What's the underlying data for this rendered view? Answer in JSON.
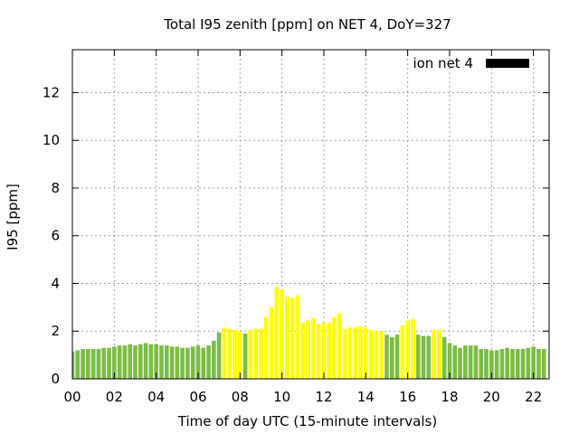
{
  "chart_data": {
    "type": "bar",
    "title": "Total I95 zenith [ppm] on NET 4, DoY=327",
    "xlabel": "Time of day UTC (15-minute intervals)",
    "ylabel": "I95 [ppm]",
    "xlim": [
      0,
      22.75
    ],
    "ylim": [
      0,
      13.8
    ],
    "grid": true,
    "legend": {
      "label": "ion net 4",
      "position": "top-right"
    },
    "x_ticks": [
      {
        "value": 0,
        "label": "00"
      },
      {
        "value": 2,
        "label": "02"
      },
      {
        "value": 4,
        "label": "04"
      },
      {
        "value": 6,
        "label": "06"
      },
      {
        "value": 8,
        "label": "08"
      },
      {
        "value": 10,
        "label": "10"
      },
      {
        "value": 12,
        "label": "12"
      },
      {
        "value": 14,
        "label": "14"
      },
      {
        "value": 16,
        "label": "16"
      },
      {
        "value": 18,
        "label": "18"
      },
      {
        "value": 20,
        "label": "20"
      },
      {
        "value": 22,
        "label": "22"
      }
    ],
    "y_ticks": [
      {
        "value": 0,
        "label": "0"
      },
      {
        "value": 2,
        "label": "2"
      },
      {
        "value": 4,
        "label": "4"
      },
      {
        "value": 6,
        "label": "6"
      },
      {
        "value": 8,
        "label": "8"
      },
      {
        "value": 10,
        "label": "10"
      },
      {
        "value": 12,
        "label": "12"
      }
    ],
    "colors": {
      "low": "#7cbc45",
      "high": "#ffff00",
      "legend": "#000000"
    },
    "bar_interval_hours": 0.25,
    "x_start_hour": 0,
    "values": [
      1.15,
      1.2,
      1.25,
      1.25,
      1.25,
      1.25,
      1.3,
      1.3,
      1.35,
      1.4,
      1.4,
      1.45,
      1.4,
      1.45,
      1.5,
      1.45,
      1.45,
      1.4,
      1.4,
      1.35,
      1.35,
      1.3,
      1.3,
      1.35,
      1.4,
      1.3,
      1.4,
      1.6,
      1.95,
      2.15,
      2.1,
      2.05,
      2.0,
      1.9,
      2.05,
      2.1,
      2.1,
      2.6,
      3.0,
      3.85,
      3.75,
      3.45,
      3.4,
      3.5,
      2.35,
      2.45,
      2.55,
      2.3,
      2.35,
      2.35,
      2.6,
      2.75,
      2.1,
      2.15,
      2.15,
      2.2,
      2.15,
      2.05,
      2.0,
      2.0,
      1.85,
      1.75,
      1.85,
      2.25,
      2.45,
      2.5,
      1.85,
      1.8,
      1.8,
      2.05,
      2.05,
      1.75,
      1.5,
      1.4,
      1.3,
      1.4,
      1.4,
      1.4,
      1.25,
      1.25,
      1.2,
      1.2,
      1.25,
      1.3,
      1.25,
      1.25,
      1.25,
      1.3,
      1.35,
      1.25,
      1.25
    ],
    "value_colors": [
      "low",
      "low",
      "low",
      "low",
      "low",
      "low",
      "low",
      "low",
      "low",
      "low",
      "low",
      "low",
      "low",
      "low",
      "low",
      "low",
      "low",
      "low",
      "low",
      "low",
      "low",
      "low",
      "low",
      "low",
      "low",
      "low",
      "low",
      "low",
      "low",
      "high",
      "high",
      "high",
      "high",
      "low",
      "high",
      "high",
      "high",
      "high",
      "high",
      "high",
      "high",
      "high",
      "high",
      "high",
      "high",
      "high",
      "high",
      "high",
      "high",
      "high",
      "high",
      "high",
      "high",
      "high",
      "high",
      "high",
      "high",
      "high",
      "high",
      "high",
      "low",
      "low",
      "low",
      "high",
      "high",
      "high",
      "low",
      "low",
      "low",
      "high",
      "high",
      "low",
      "low",
      "low",
      "low",
      "low",
      "low",
      "low",
      "low",
      "low",
      "low",
      "low",
      "low",
      "low",
      "low",
      "low",
      "low",
      "low",
      "low",
      "low",
      "low"
    ]
  }
}
